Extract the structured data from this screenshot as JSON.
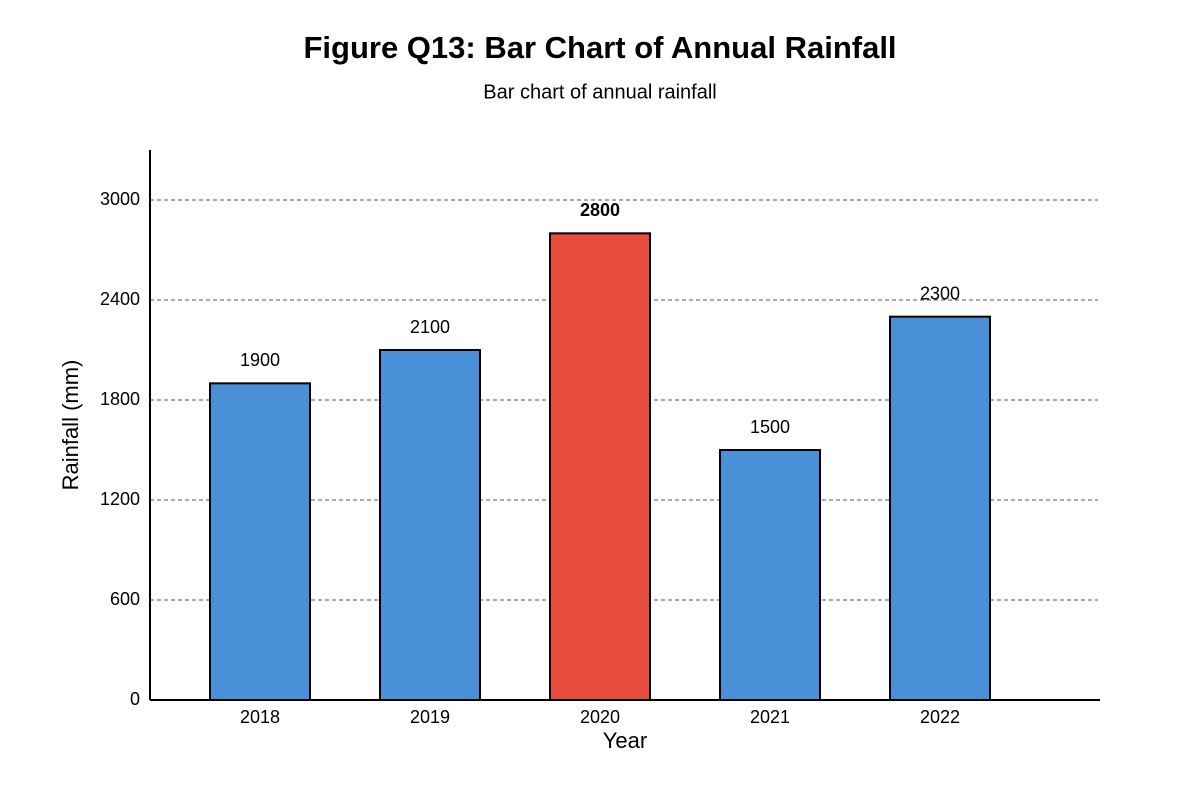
{
  "chart_data": {
    "type": "bar",
    "title": "Figure Q13: Bar Chart of Annual Rainfall",
    "subtitle": "Bar chart of annual rainfall",
    "x_label": "Year",
    "y_label": "Rainfall (mm)",
    "categories": [
      "2018",
      "2019",
      "2020",
      "2021",
      "2022"
    ],
    "values": [
      1900,
      2100,
      2800,
      1500,
      2300
    ],
    "colors": [
      "#4a90d9",
      "#4a90d9",
      "#e74c3c",
      "#4a90d9",
      "#4a90d9"
    ],
    "highlight_index": 2,
    "ylim": [
      0,
      3300
    ],
    "yticks": [
      0,
      600,
      1200,
      1800,
      2400,
      3000
    ],
    "grid": true
  }
}
